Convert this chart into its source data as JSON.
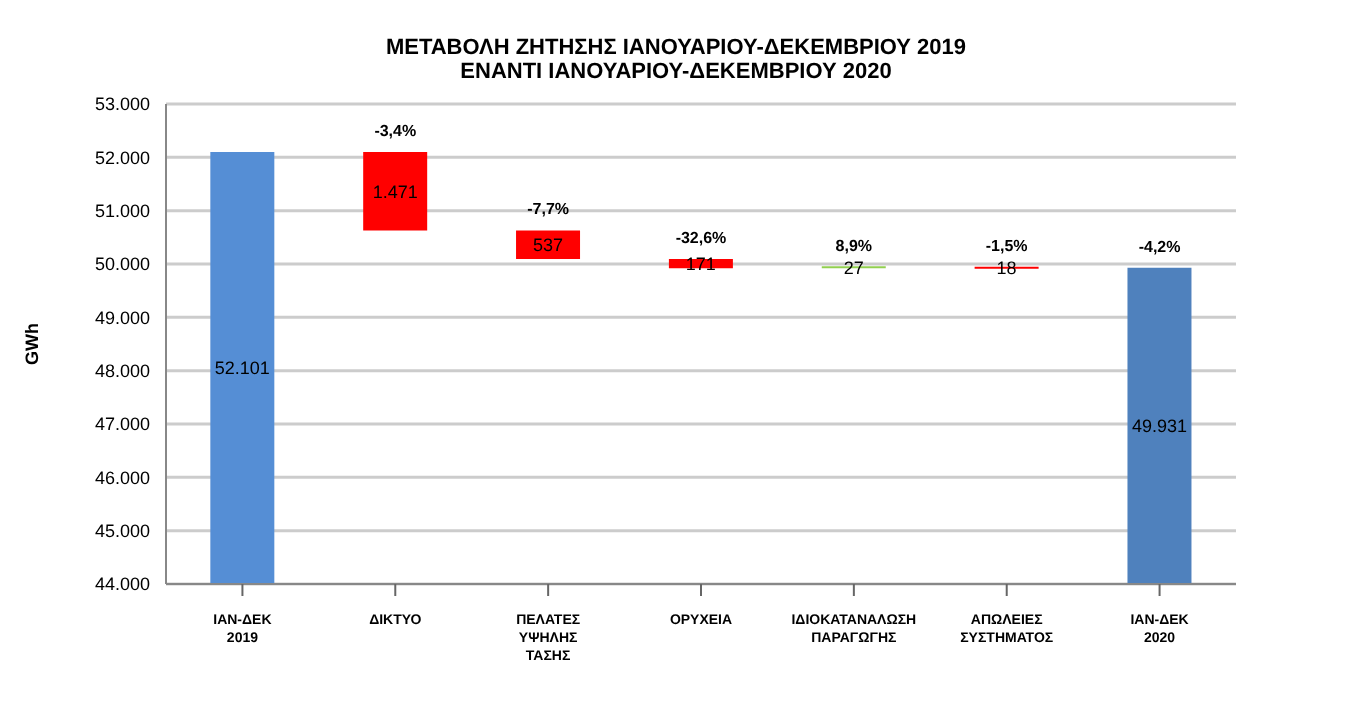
{
  "chart_data": {
    "type": "bar",
    "title": "ΜΕΤΑΒΟΛΗ ΖΗΤΗΣΗΣ ΙΑΝΟΥΑΡΙΟΥ-ΔΕΚΕΜΒΡΙΟΥ 2019",
    "subtitle": "ΕΝΑΝΤΙ ΙΑΝΟΥΑΡΙΟΥ-ΔΕΚΕΜΒΡΙΟΥ 2020",
    "ylabel": "GWh",
    "categories": [
      "ΙΑΝ-ΔΕΚ 2019",
      "ΔΙΚΤΥΟ",
      "ΠΕΛΑΤΕΣ ΥΨΗΛΗΣ ΤΑΣΗΣ",
      "ΟΡΥΧΕΙΑ",
      "ΙΔΙΟΚΑΤΑΝΑΛΩΣΗ ΠΑΡΑΓΩΓΗΣ",
      "ΑΠΩΛΕΙΕΣ ΣΥΣΤΗΜΑΤΟΣ",
      "ΙΑΝ-ΔΕΚ 2020"
    ],
    "values": [
      52101,
      -1471,
      -537,
      -171,
      27,
      -18,
      49931
    ],
    "base": [
      null,
      52101,
      50630,
      50093,
      49922,
      49949,
      null
    ],
    "colors": [
      "#558ed5",
      "#ff0000",
      "#ff0000",
      "#ff0000",
      "#92d050",
      "#ff0000",
      "#4f81bd"
    ],
    "value_labels": [
      "52.101",
      "1.471",
      "537",
      "171",
      "27",
      "18",
      "49.931"
    ],
    "ylim": [
      44000,
      53000
    ],
    "yticks": [
      {
        "value": 44000,
        "label": "44.000"
      },
      {
        "value": 45000,
        "label": "45.000"
      },
      {
        "value": 46000,
        "label": "46.000"
      },
      {
        "value": 47000,
        "label": "47.000"
      },
      {
        "value": 48000,
        "label": "48.000"
      },
      {
        "value": 49000,
        "label": "49.000"
      },
      {
        "value": 50000,
        "label": "50.000"
      },
      {
        "value": 51000,
        "label": "51.000"
      },
      {
        "value": 52000,
        "label": "52.000"
      },
      {
        "value": 53000,
        "label": "53.000"
      }
    ],
    "grid": "y",
    "legend": false,
    "annotations": [
      {
        "text": "-3,4%",
        "x": "ΔΙΚΤΥΟ",
        "y": 52101
      },
      {
        "text": "-7,7%",
        "x": "ΠΕΛΑΤΕΣ ΥΨΗΛΗΣ ΤΑΣΗΣ",
        "y": 50630
      },
      {
        "text": "-32,6%",
        "x": "ΟΡΥΧΕΙΑ",
        "y": 50093
      },
      {
        "text": "8,9%",
        "x": "ΙΔΙΟΚΑΤΑΝΑΛΩΣΗ ΠΑΡΑΓΩΓΗΣ",
        "y": 49949
      },
      {
        "text": "-1,5%",
        "x": "ΑΠΩΛΕΙΕΣ ΣΥΣΤΗΜΑΤΟΣ",
        "y": 49949
      },
      {
        "text": "-4,2%",
        "x": "ΙΑΝ-ΔΕΚ 2020",
        "y": 49931
      }
    ]
  }
}
